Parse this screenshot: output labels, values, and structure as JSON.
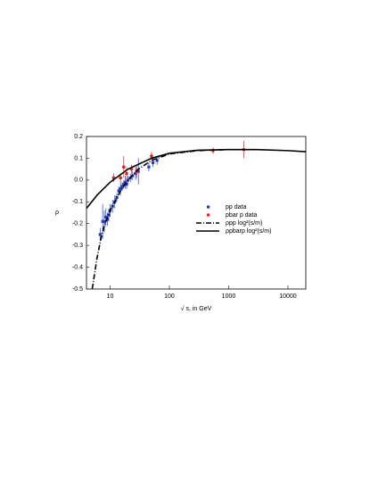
{
  "chart_data": {
    "type": "scatter",
    "log_x": true,
    "x_label": "√ s, in GeV",
    "y_label": "ρ",
    "xlim": [
      4,
      20000
    ],
    "ylim": [
      -0.5,
      0.2
    ],
    "xticks": [
      10,
      100,
      1000,
      10000
    ],
    "yticks": [
      0.2,
      0.1,
      {
        "value": 0,
        "label": "0.0"
      },
      -0.1,
      -0.2,
      -0.3,
      -0.4,
      -0.5
    ],
    "series": [
      {
        "name": "pp      data",
        "kind": "points",
        "marker": "square",
        "color": "#1f3fbf",
        "x": [
          6.8,
          7.5,
          8,
          8.5,
          9,
          9.5,
          10,
          11,
          12,
          13,
          14,
          15,
          16,
          17,
          18,
          19,
          20,
          22,
          24,
          27,
          30,
          45,
          53,
          62
        ],
        "values": [
          -0.25,
          -0.19,
          -0.19,
          -0.17,
          -0.18,
          -0.16,
          -0.14,
          -0.12,
          -0.1,
          -0.08,
          -0.05,
          -0.04,
          -0.03,
          -0.02,
          -0.01,
          -0.02,
          0.0,
          0.01,
          0.02,
          0.03,
          0.04,
          0.06,
          0.08,
          0.09
        ],
        "errors": [
          0.03,
          0.08,
          0.05,
          0.04,
          0.03,
          0.03,
          0.03,
          0.03,
          0.03,
          0.02,
          0.02,
          0.03,
          0.02,
          0.02,
          0.03,
          0.02,
          0.02,
          0.02,
          0.02,
          0.03,
          0.06,
          0.02,
          0.02,
          0.02
        ]
      },
      {
        "name": "pbar p data",
        "kind": "points",
        "marker": "circle",
        "color": "#e02020",
        "x": [
          11.5,
          15,
          17,
          19,
          23,
          28,
          50,
          546,
          1800
        ],
        "values": [
          0.01,
          0.01,
          0.06,
          0.03,
          0.05,
          0.04,
          0.11,
          0.135,
          0.14
        ],
        "errors": [
          0.02,
          0.02,
          0.05,
          0.03,
          0.02,
          0.03,
          0.02,
          0.015,
          0.04
        ]
      },
      {
        "name": "ρpp  log²(s/m)",
        "kind": "line",
        "dash": "6 2 1 2",
        "color": "#000000",
        "x": [
          5,
          6,
          7,
          8,
          10,
          15,
          20,
          30,
          50,
          100,
          300,
          1000
        ],
        "values": [
          -0.5,
          -0.36,
          -0.27,
          -0.21,
          -0.14,
          -0.05,
          0.0,
          0.05,
          0.09,
          0.12,
          0.135,
          0.14
        ]
      },
      {
        "name": "ρpbarp log²(s/m)",
        "kind": "line",
        "dash": "none",
        "color": "#000000",
        "x": [
          4,
          6,
          10,
          20,
          50,
          100,
          300,
          1000,
          3000,
          10000,
          20000
        ],
        "values": [
          -0.13,
          -0.07,
          -0.01,
          0.05,
          0.1,
          0.123,
          0.137,
          0.14,
          0.14,
          0.135,
          0.13
        ]
      }
    ]
  }
}
